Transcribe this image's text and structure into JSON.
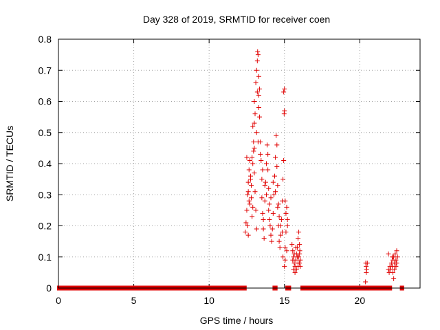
{
  "chart_data": {
    "type": "scatter",
    "title": "Day 328 of 2019, SRMTID for receiver coen",
    "xlabel": "GPS time / hours",
    "ylabel": "SRMTID / TECUs",
    "xlim": [
      0,
      24
    ],
    "ylim": [
      0,
      0.8
    ],
    "x_ticks": [
      0,
      5,
      10,
      15,
      20
    ],
    "y_ticks": [
      0,
      0.1,
      0.2,
      0.3,
      0.4,
      0.5,
      0.6,
      0.7,
      0.8
    ],
    "x_tick_labels": [
      "0",
      "5",
      "10",
      "15",
      "20"
    ],
    "y_tick_labels": [
      "0",
      "0.1",
      "0.2",
      "0.3",
      "0.4",
      "0.5",
      "0.6",
      "0.7",
      "0.8"
    ],
    "grid": true,
    "marker": "+",
    "marker_color": "#e00000",
    "series": [
      {
        "name": "SRMTID",
        "points": [
          [
            12.4,
            0.18
          ],
          [
            12.45,
            0.21
          ],
          [
            12.5,
            0.25
          ],
          [
            12.55,
            0.3
          ],
          [
            12.6,
            0.34
          ],
          [
            12.65,
            0.38
          ],
          [
            12.7,
            0.41
          ],
          [
            12.75,
            0.36
          ],
          [
            12.8,
            0.29
          ],
          [
            12.85,
            0.23
          ],
          [
            12.5,
            0.42
          ],
          [
            12.55,
            0.2
          ],
          [
            12.6,
            0.17
          ],
          [
            12.7,
            0.27
          ],
          [
            12.8,
            0.33
          ],
          [
            12.9,
            0.4
          ],
          [
            12.95,
            0.47
          ],
          [
            13.0,
            0.53
          ],
          [
            13.05,
            0.56
          ],
          [
            13.0,
            0.6
          ],
          [
            12.9,
            0.52
          ],
          [
            12.95,
            0.44
          ],
          [
            13.0,
            0.37
          ],
          [
            13.05,
            0.31
          ],
          [
            13.1,
            0.25
          ],
          [
            13.15,
            0.19
          ],
          [
            13.1,
            0.66
          ],
          [
            13.15,
            0.7
          ],
          [
            13.2,
            0.73
          ],
          [
            13.22,
            0.76
          ],
          [
            13.25,
            0.75
          ],
          [
            13.3,
            0.68
          ],
          [
            13.2,
            0.63
          ],
          [
            13.3,
            0.58
          ],
          [
            13.35,
            0.55
          ],
          [
            13.3,
            0.62
          ],
          [
            13.35,
            0.64
          ],
          [
            13.4,
            0.47
          ],
          [
            13.45,
            0.41
          ],
          [
            13.5,
            0.35
          ],
          [
            13.5,
            0.29
          ],
          [
            13.55,
            0.24
          ],
          [
            13.6,
            0.19
          ],
          [
            13.65,
            0.16
          ],
          [
            13.6,
            0.22
          ],
          [
            13.7,
            0.28
          ],
          [
            13.75,
            0.34
          ],
          [
            13.8,
            0.4
          ],
          [
            13.85,
            0.46
          ],
          [
            13.9,
            0.43
          ],
          [
            13.9,
            0.38
          ],
          [
            13.95,
            0.32
          ],
          [
            14.0,
            0.27
          ],
          [
            14.0,
            0.22
          ],
          [
            14.05,
            0.2
          ],
          [
            14.1,
            0.17
          ],
          [
            14.15,
            0.15
          ],
          [
            14.2,
            0.19
          ],
          [
            14.25,
            0.24
          ],
          [
            14.3,
            0.3
          ],
          [
            14.35,
            0.36
          ],
          [
            14.4,
            0.42
          ],
          [
            14.45,
            0.49
          ],
          [
            14.5,
            0.46
          ],
          [
            14.5,
            0.39
          ],
          [
            14.55,
            0.33
          ],
          [
            14.6,
            0.27
          ],
          [
            14.6,
            0.2
          ],
          [
            14.65,
            0.15
          ],
          [
            14.7,
            0.13
          ],
          [
            14.75,
            0.17
          ],
          [
            14.8,
            0.22
          ],
          [
            14.85,
            0.28
          ],
          [
            14.9,
            0.35
          ],
          [
            14.95,
            0.41
          ],
          [
            15.0,
            0.64
          ],
          [
            15.0,
            0.57
          ],
          [
            14.95,
            0.63
          ],
          [
            14.98,
            0.56
          ],
          [
            15.05,
            0.28
          ],
          [
            15.1,
            0.24
          ],
          [
            15.1,
            0.18
          ],
          [
            15.15,
            0.12
          ],
          [
            15.05,
            0.09
          ],
          [
            15.2,
            0.2
          ],
          [
            15.15,
            0.26
          ],
          [
            15.2,
            0.22
          ],
          [
            15.0,
            0.07
          ],
          [
            14.9,
            0.1
          ],
          [
            15.05,
            0.13
          ],
          [
            12.6,
            0.31
          ],
          [
            12.75,
            0.35
          ],
          [
            12.85,
            0.42
          ],
          [
            13.0,
            0.45
          ],
          [
            13.15,
            0.5
          ],
          [
            13.25,
            0.47
          ],
          [
            13.4,
            0.43
          ],
          [
            13.55,
            0.38
          ],
          [
            13.7,
            0.33
          ],
          [
            13.8,
            0.3
          ],
          [
            13.95,
            0.25
          ],
          [
            14.1,
            0.29
          ],
          [
            14.25,
            0.34
          ],
          [
            14.4,
            0.31
          ],
          [
            14.55,
            0.26
          ],
          [
            14.65,
            0.23
          ],
          [
            14.75,
            0.2
          ],
          [
            14.85,
            0.18
          ],
          [
            12.65,
            0.28
          ],
          [
            12.9,
            0.26
          ],
          [
            15.5,
            0.14
          ],
          [
            15.55,
            0.12
          ],
          [
            15.6,
            0.1
          ],
          [
            15.65,
            0.08
          ],
          [
            15.7,
            0.07
          ],
          [
            15.75,
            0.09
          ],
          [
            15.8,
            0.11
          ],
          [
            15.85,
            0.13
          ],
          [
            15.9,
            0.16
          ],
          [
            15.95,
            0.18
          ],
          [
            16.0,
            0.14
          ],
          [
            16.0,
            0.11
          ],
          [
            16.05,
            0.09
          ],
          [
            16.05,
            0.07
          ],
          [
            15.6,
            0.06
          ],
          [
            15.7,
            0.05
          ],
          [
            15.8,
            0.06
          ],
          [
            15.9,
            0.08
          ],
          [
            15.95,
            0.1
          ],
          [
            16.02,
            0.12
          ],
          [
            15.55,
            0.09
          ],
          [
            15.65,
            0.11
          ],
          [
            15.75,
            0.13
          ],
          [
            15.85,
            0.1
          ],
          [
            15.9,
            0.07
          ],
          [
            16.0,
            0.08
          ],
          [
            20.4,
            0.08
          ],
          [
            20.42,
            0.07
          ],
          [
            20.45,
            0.06
          ],
          [
            20.5,
            0.08
          ],
          [
            20.38,
            0.02
          ],
          [
            20.43,
            0.05
          ],
          [
            21.9,
            0.06
          ],
          [
            21.95,
            0.05
          ],
          [
            22.0,
            0.07
          ],
          [
            22.05,
            0.06
          ],
          [
            22.1,
            0.08
          ],
          [
            22.15,
            0.07
          ],
          [
            22.2,
            0.09
          ],
          [
            22.25,
            0.1
          ],
          [
            22.3,
            0.08
          ],
          [
            22.35,
            0.11
          ],
          [
            22.4,
            0.09
          ],
          [
            22.45,
            0.12
          ],
          [
            22.5,
            0.1
          ],
          [
            22.2,
            0.05
          ],
          [
            22.25,
            0.03
          ],
          [
            22.3,
            0.06
          ],
          [
            22.4,
            0.07
          ],
          [
            22.45,
            0.08
          ],
          [
            21.9,
            0.11
          ],
          [
            22.15,
            0.1
          ]
        ],
        "baseline_segments": [
          [
            0,
            12.4
          ],
          [
            14.3,
            14.45
          ],
          [
            15.15,
            15.35
          ],
          [
            16.15,
            20.2
          ],
          [
            20.35,
            22.05
          ],
          [
            22.75,
            22.85
          ]
        ]
      }
    ]
  }
}
